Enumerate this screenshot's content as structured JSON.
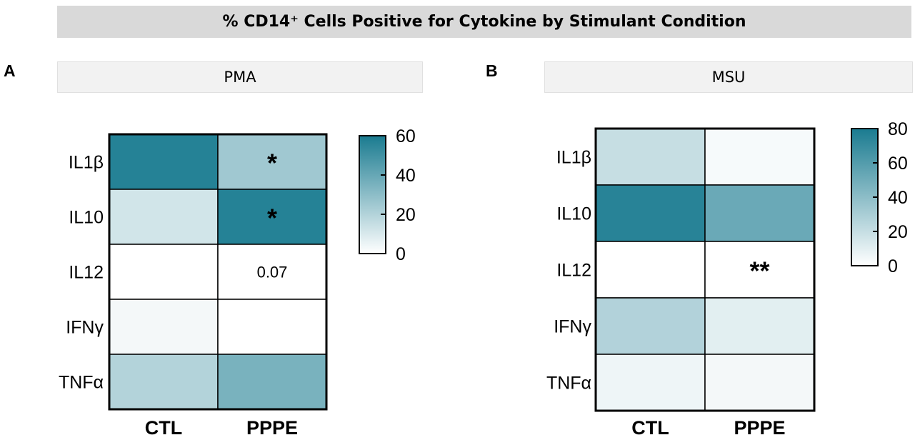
{
  "title": "% CD14⁺ Cells Positive for Cytokine by Stimulant Condition",
  "colors": {
    "high": "#1a7b90",
    "low": "#ffffff",
    "border": "#000000",
    "title_bg": "#d9d9d9",
    "header_bg": "#f2f2f2"
  },
  "chart_data": [
    {
      "type": "heatmap",
      "panel_letter": "A",
      "panel_title": "PMA",
      "rows": [
        "IL1β",
        "IL10",
        "IL12",
        "IFNγ",
        "TNFα"
      ],
      "columns": [
        "CTL",
        "PPPE"
      ],
      "values": [
        [
          57,
          25
        ],
        [
          12,
          57
        ],
        [
          0,
          0
        ],
        [
          3,
          0
        ],
        [
          20,
          35
        ]
      ],
      "annotations": [
        [
          "",
          "*"
        ],
        [
          "",
          "*"
        ],
        [
          "",
          "0.07"
        ],
        [
          "",
          ""
        ],
        [
          "",
          ""
        ]
      ],
      "colorbar": {
        "min": 0,
        "max": 60,
        "ticks": [
          0,
          20,
          40,
          60
        ]
      }
    },
    {
      "type": "heatmap",
      "panel_letter": "B",
      "panel_title": "MSU",
      "rows": [
        "IL1β",
        "IL10",
        "IL12",
        "IFNγ",
        "TNFα"
      ],
      "columns": [
        "CTL",
        "PPPE"
      ],
      "values": [
        [
          20,
          3
        ],
        [
          75,
          52
        ],
        [
          0,
          0
        ],
        [
          27,
          10
        ],
        [
          6,
          4
        ]
      ],
      "annotations": [
        [
          "",
          ""
        ],
        [
          "",
          ""
        ],
        [
          "",
          "**"
        ],
        [
          "",
          ""
        ],
        [
          "",
          ""
        ]
      ],
      "colorbar": {
        "min": 0,
        "max": 80,
        "ticks": [
          0,
          20,
          40,
          60,
          80
        ]
      }
    }
  ]
}
